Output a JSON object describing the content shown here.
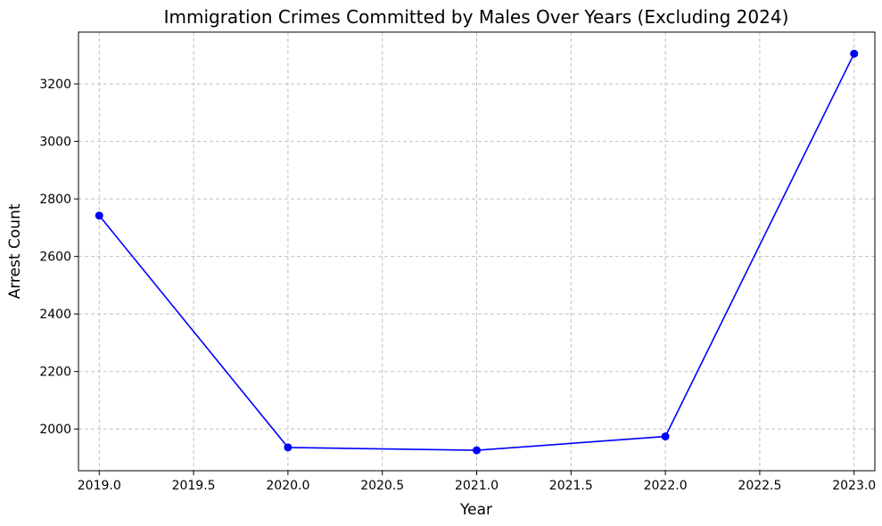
{
  "chart_data": {
    "type": "line",
    "title": "Immigration Crimes Committed by Males Over Years (Excluding 2024)",
    "xlabel": "Year",
    "ylabel": "Arrest Count",
    "x": [
      2019,
      2020,
      2021,
      2022,
      2023
    ],
    "series": [
      {
        "values": [
          2742,
          1936,
          1926,
          1974,
          3305
        ],
        "color": "#0000ff",
        "marker": "circle"
      }
    ],
    "xlim": [
      2018.89,
      2023.11
    ],
    "ylim": [
      1855,
      3380
    ],
    "xticks": [
      "2019.0",
      "2019.5",
      "2020.0",
      "2020.5",
      "2021.0",
      "2021.5",
      "2022.0",
      "2022.5",
      "2023.0"
    ],
    "xtick_values": [
      2019.0,
      2019.5,
      2020.0,
      2020.5,
      2021.0,
      2021.5,
      2022.0,
      2022.5,
      2023.0
    ],
    "yticks": [
      "2000",
      "2200",
      "2400",
      "2600",
      "2800",
      "3000",
      "3200"
    ],
    "ytick_values": [
      2000,
      2200,
      2400,
      2600,
      2800,
      3000,
      3200
    ],
    "grid": true,
    "colors": {
      "line": "#0000ff",
      "grid": "#c0c0c0"
    }
  }
}
